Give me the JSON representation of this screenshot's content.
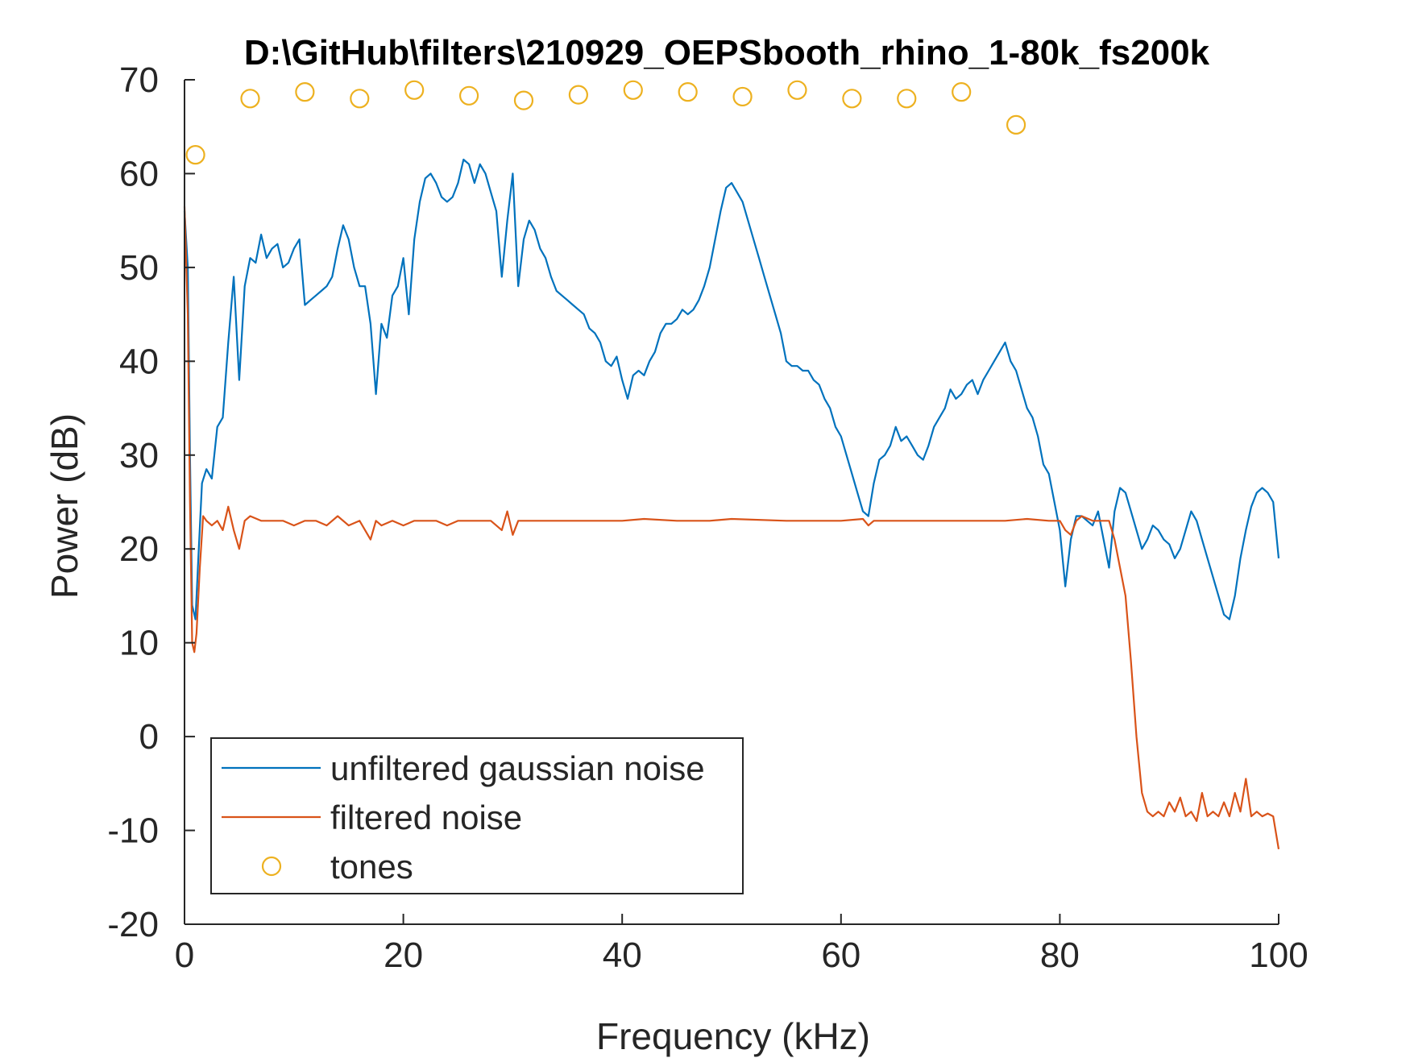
{
  "chart_data": {
    "type": "line",
    "title": "D:\\GitHub\\filters\\210929_OEPSbooth_rhino_1-80k_fs200k",
    "xlabel": "Frequency (kHz)",
    "ylabel": "Power (dB)",
    "xlim": [
      0,
      100
    ],
    "ylim": [
      -20,
      70
    ],
    "xticks": [
      0,
      20,
      40,
      60,
      80,
      100
    ],
    "yticks": [
      -20,
      -10,
      0,
      10,
      20,
      30,
      40,
      50,
      60,
      70
    ],
    "legend_position": "bottom-left",
    "series": [
      {
        "name": "unfiltered gaussian noise",
        "color": "#0072BD",
        "style": "line",
        "points": [
          [
            0,
            56
          ],
          [
            0.3,
            50
          ],
          [
            0.5,
            30
          ],
          [
            0.7,
            14
          ],
          [
            1,
            12.5
          ],
          [
            1.3,
            20
          ],
          [
            1.6,
            27
          ],
          [
            2,
            28.5
          ],
          [
            2.5,
            27.5
          ],
          [
            3,
            33
          ],
          [
            3.5,
            34
          ],
          [
            4,
            42
          ],
          [
            4.5,
            49
          ],
          [
            5,
            38
          ],
          [
            5.5,
            48
          ],
          [
            6,
            51
          ],
          [
            6.5,
            50.5
          ],
          [
            7,
            53.5
          ],
          [
            7.5,
            51
          ],
          [
            8,
            52
          ],
          [
            8.5,
            52.5
          ],
          [
            9,
            50
          ],
          [
            9.5,
            50.5
          ],
          [
            10,
            52
          ],
          [
            10.5,
            53
          ],
          [
            11,
            46
          ],
          [
            11.5,
            46.5
          ],
          [
            12,
            47
          ],
          [
            12.5,
            47.5
          ],
          [
            13,
            48
          ],
          [
            13.5,
            49
          ],
          [
            14,
            52
          ],
          [
            14.5,
            54.5
          ],
          [
            15,
            53
          ],
          [
            15.5,
            50
          ],
          [
            16,
            48
          ],
          [
            16.5,
            48
          ],
          [
            17,
            44
          ],
          [
            17.5,
            36.5
          ],
          [
            18,
            44
          ],
          [
            18.5,
            42.5
          ],
          [
            19,
            47
          ],
          [
            19.5,
            48
          ],
          [
            20,
            51
          ],
          [
            20.5,
            45
          ],
          [
            21,
            53
          ],
          [
            21.5,
            57
          ],
          [
            22,
            59.5
          ],
          [
            22.5,
            60
          ],
          [
            23,
            59
          ],
          [
            23.5,
            57.5
          ],
          [
            24,
            57
          ],
          [
            24.5,
            57.5
          ],
          [
            25,
            59
          ],
          [
            25.5,
            61.5
          ],
          [
            26,
            61
          ],
          [
            26.5,
            59
          ],
          [
            27,
            61
          ],
          [
            27.5,
            60
          ],
          [
            28,
            58
          ],
          [
            28.5,
            56
          ],
          [
            29,
            49
          ],
          [
            29.5,
            55
          ],
          [
            30,
            60
          ],
          [
            30.5,
            48
          ],
          [
            31,
            53
          ],
          [
            31.5,
            55
          ],
          [
            32,
            54
          ],
          [
            32.5,
            52
          ],
          [
            33,
            51
          ],
          [
            33.5,
            49
          ],
          [
            34,
            47.5
          ],
          [
            34.5,
            47
          ],
          [
            35,
            46.5
          ],
          [
            35.5,
            46
          ],
          [
            36,
            45.5
          ],
          [
            36.5,
            45
          ],
          [
            37,
            43.5
          ],
          [
            37.5,
            43
          ],
          [
            38,
            42
          ],
          [
            38.5,
            40
          ],
          [
            39,
            39.5
          ],
          [
            39.5,
            40.5
          ],
          [
            40,
            38
          ],
          [
            40.5,
            36
          ],
          [
            41,
            38.5
          ],
          [
            41.5,
            39
          ],
          [
            42,
            38.5
          ],
          [
            42.5,
            40
          ],
          [
            43,
            41
          ],
          [
            43.5,
            43
          ],
          [
            44,
            44
          ],
          [
            44.5,
            44
          ],
          [
            45,
            44.5
          ],
          [
            45.5,
            45.5
          ],
          [
            46,
            45
          ],
          [
            46.5,
            45.5
          ],
          [
            47,
            46.5
          ],
          [
            47.5,
            48
          ],
          [
            48,
            50
          ],
          [
            48.5,
            53
          ],
          [
            49,
            56
          ],
          [
            49.5,
            58.5
          ],
          [
            50,
            59
          ],
          [
            50.5,
            58
          ],
          [
            51,
            57
          ],
          [
            51.5,
            55
          ],
          [
            52,
            53
          ],
          [
            52.5,
            51
          ],
          [
            53,
            49
          ],
          [
            53.5,
            47
          ],
          [
            54,
            45
          ],
          [
            54.5,
            43
          ],
          [
            55,
            40
          ],
          [
            55.5,
            39.5
          ],
          [
            56,
            39.5
          ],
          [
            56.5,
            39
          ],
          [
            57,
            39
          ],
          [
            57.5,
            38
          ],
          [
            58,
            37.5
          ],
          [
            58.5,
            36
          ],
          [
            59,
            35
          ],
          [
            59.5,
            33
          ],
          [
            60,
            32
          ],
          [
            60.5,
            30
          ],
          [
            61,
            28
          ],
          [
            61.5,
            26
          ],
          [
            62,
            24
          ],
          [
            62.5,
            23.5
          ],
          [
            63,
            27
          ],
          [
            63.5,
            29.5
          ],
          [
            64,
            30
          ],
          [
            64.5,
            31
          ],
          [
            65,
            33
          ],
          [
            65.5,
            31.5
          ],
          [
            66,
            32
          ],
          [
            66.5,
            31
          ],
          [
            67,
            30
          ],
          [
            67.5,
            29.5
          ],
          [
            68,
            31
          ],
          [
            68.5,
            33
          ],
          [
            69,
            34
          ],
          [
            69.5,
            35
          ],
          [
            70,
            37
          ],
          [
            70.5,
            36
          ],
          [
            71,
            36.5
          ],
          [
            71.5,
            37.5
          ],
          [
            72,
            38
          ],
          [
            72.5,
            36.5
          ],
          [
            73,
            38
          ],
          [
            73.5,
            39
          ],
          [
            74,
            40
          ],
          [
            74.5,
            41
          ],
          [
            75,
            42
          ],
          [
            75.5,
            40
          ],
          [
            76,
            39
          ],
          [
            76.5,
            37
          ],
          [
            77,
            35
          ],
          [
            77.5,
            34
          ],
          [
            78,
            32
          ],
          [
            78.5,
            29
          ],
          [
            79,
            28
          ],
          [
            79.5,
            25
          ],
          [
            80,
            22
          ],
          [
            80.5,
            16
          ],
          [
            81,
            21
          ],
          [
            81.5,
            23.5
          ],
          [
            82,
            23.5
          ],
          [
            82.5,
            23
          ],
          [
            83,
            22.5
          ],
          [
            83.5,
            24
          ],
          [
            84,
            21
          ],
          [
            84.5,
            18
          ],
          [
            85,
            24
          ],
          [
            85.5,
            26.5
          ],
          [
            86,
            26
          ],
          [
            86.5,
            24
          ],
          [
            87,
            22
          ],
          [
            87.5,
            20
          ],
          [
            88,
            21
          ],
          [
            88.5,
            22.5
          ],
          [
            89,
            22
          ],
          [
            89.5,
            21
          ],
          [
            90,
            20.5
          ],
          [
            90.5,
            19
          ],
          [
            91,
            20
          ],
          [
            91.5,
            22
          ],
          [
            92,
            24
          ],
          [
            92.5,
            23
          ],
          [
            93,
            21
          ],
          [
            93.5,
            19
          ],
          [
            94,
            17
          ],
          [
            94.5,
            15
          ],
          [
            95,
            13
          ],
          [
            95.5,
            12.5
          ],
          [
            96,
            15
          ],
          [
            96.5,
            19
          ],
          [
            97,
            22
          ],
          [
            97.5,
            24.5
          ],
          [
            98,
            26
          ],
          [
            98.5,
            26.5
          ],
          [
            99,
            26
          ],
          [
            99.5,
            25
          ],
          [
            100,
            19
          ]
        ]
      },
      {
        "name": "filtered noise",
        "color": "#D95319",
        "style": "line",
        "points": [
          [
            0,
            56.5
          ],
          [
            0.3,
            45
          ],
          [
            0.5,
            25
          ],
          [
            0.7,
            10
          ],
          [
            0.9,
            9
          ],
          [
            1.1,
            11
          ],
          [
            1.4,
            18
          ],
          [
            1.7,
            23.5
          ],
          [
            2,
            23
          ],
          [
            2.5,
            22.5
          ],
          [
            3,
            23
          ],
          [
            3.5,
            22
          ],
          [
            4,
            24.5
          ],
          [
            4.5,
            22
          ],
          [
            5,
            20
          ],
          [
            5.5,
            23
          ],
          [
            6,
            23.5
          ],
          [
            7,
            23
          ],
          [
            8,
            23
          ],
          [
            9,
            23
          ],
          [
            10,
            22.5
          ],
          [
            11,
            23
          ],
          [
            12,
            23
          ],
          [
            13,
            22.5
          ],
          [
            14,
            23.5
          ],
          [
            15,
            22.5
          ],
          [
            16,
            23
          ],
          [
            17,
            21
          ],
          [
            17.5,
            23
          ],
          [
            18,
            22.5
          ],
          [
            19,
            23
          ],
          [
            20,
            22.5
          ],
          [
            21,
            23
          ],
          [
            22,
            23
          ],
          [
            23,
            23
          ],
          [
            24,
            22.5
          ],
          [
            25,
            23
          ],
          [
            26,
            23
          ],
          [
            27,
            23
          ],
          [
            28,
            23
          ],
          [
            29,
            22
          ],
          [
            29.5,
            24
          ],
          [
            30,
            21.5
          ],
          [
            30.5,
            23
          ],
          [
            32,
            23
          ],
          [
            35,
            23
          ],
          [
            38,
            23
          ],
          [
            40,
            23
          ],
          [
            42,
            23.2
          ],
          [
            45,
            23
          ],
          [
            48,
            23
          ],
          [
            50,
            23.2
          ],
          [
            55,
            23
          ],
          [
            60,
            23
          ],
          [
            62,
            23.2
          ],
          [
            62.5,
            22.5
          ],
          [
            63,
            23
          ],
          [
            65,
            23
          ],
          [
            68,
            23
          ],
          [
            70,
            23
          ],
          [
            72,
            23
          ],
          [
            75,
            23
          ],
          [
            77,
            23.2
          ],
          [
            79,
            23
          ],
          [
            80,
            23
          ],
          [
            80.5,
            22
          ],
          [
            81,
            21.5
          ],
          [
            81.5,
            23
          ],
          [
            82,
            23.5
          ],
          [
            83,
            23
          ],
          [
            84,
            23
          ],
          [
            84.5,
            23
          ],
          [
            85,
            21
          ],
          [
            85.5,
            18
          ],
          [
            86,
            15
          ],
          [
            86.5,
            8
          ],
          [
            87,
            0
          ],
          [
            87.5,
            -6
          ],
          [
            88,
            -8
          ],
          [
            88.5,
            -8.5
          ],
          [
            89,
            -8
          ],
          [
            89.5,
            -8.5
          ],
          [
            90,
            -7
          ],
          [
            90.5,
            -8
          ],
          [
            91,
            -6.5
          ],
          [
            91.5,
            -8.5
          ],
          [
            92,
            -8
          ],
          [
            92.5,
            -9
          ],
          [
            93,
            -6
          ],
          [
            93.5,
            -8.5
          ],
          [
            94,
            -8
          ],
          [
            94.5,
            -8.5
          ],
          [
            95,
            -7
          ],
          [
            95.5,
            -8.5
          ],
          [
            96,
            -6
          ],
          [
            96.5,
            -8
          ],
          [
            97,
            -4.5
          ],
          [
            97.5,
            -8.5
          ],
          [
            98,
            -8
          ],
          [
            98.5,
            -8.5
          ],
          [
            99,
            -8.2
          ],
          [
            99.5,
            -8.5
          ],
          [
            100,
            -12
          ]
        ]
      },
      {
        "name": "tones",
        "color": "#EDB120",
        "style": "marker",
        "points": [
          [
            1,
            62
          ],
          [
            6,
            68
          ],
          [
            11,
            68.7
          ],
          [
            16,
            68
          ],
          [
            21,
            68.9
          ],
          [
            26,
            68.3
          ],
          [
            31,
            67.8
          ],
          [
            36,
            68.4
          ],
          [
            41,
            68.9
          ],
          [
            46,
            68.7
          ],
          [
            51,
            68.2
          ],
          [
            56,
            68.9
          ],
          [
            61,
            68
          ],
          [
            66,
            68
          ],
          [
            71,
            68.7
          ],
          [
            76,
            65.2
          ]
        ]
      }
    ]
  }
}
